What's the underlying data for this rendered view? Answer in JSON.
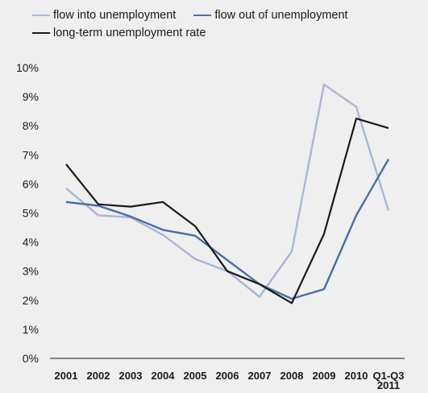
{
  "chart_data": {
    "type": "line",
    "title": "",
    "xlabel": "",
    "ylabel": "",
    "categories": [
      "2001",
      "2002",
      "2003",
      "2004",
      "2005",
      "2006",
      "2007",
      "2008",
      "2009",
      "2010",
      "Q1-Q3\n2011"
    ],
    "y_ticks": [
      "0%",
      "1%",
      "2%",
      "3%",
      "4%",
      "5%",
      "6%",
      "7%",
      "8%",
      "9%",
      "10%"
    ],
    "ylim": [
      0,
      10
    ],
    "grid": false,
    "legend_position": "top",
    "series": [
      {
        "name": "flow into unemployment",
        "color": "#a9b6d6",
        "values": [
          5.85,
          4.92,
          4.85,
          4.25,
          3.42,
          3.0,
          2.12,
          3.68,
          9.42,
          8.65,
          5.08
        ]
      },
      {
        "name": "flow out of unemployment",
        "color": "#4a6ea8",
        "values": [
          5.38,
          5.25,
          4.88,
          4.42,
          4.22,
          3.38,
          2.55,
          2.05,
          2.38,
          4.92,
          6.85
        ]
      },
      {
        "name": "long-term unemployment rate",
        "color": "#1a1a1a",
        "values": [
          6.68,
          5.3,
          5.22,
          5.38,
          4.55,
          3.0,
          2.55,
          1.9,
          4.28,
          8.25,
          7.92
        ]
      }
    ]
  }
}
